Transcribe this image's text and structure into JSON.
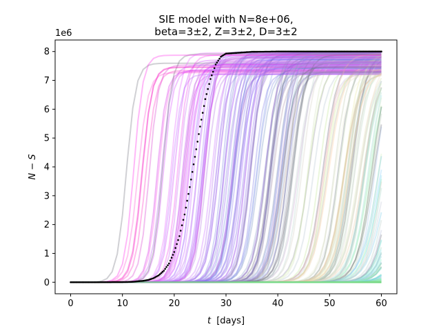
{
  "chart_data": {
    "type": "line",
    "title_lines": [
      "SIE model with N=8e+06,",
      "beta=3±2, Z=3±2, D=3±2"
    ],
    "xlabel_var": "t",
    "xlabel_unit": "[days]",
    "ylabel": "N − S",
    "y_offset_label": "1e6",
    "xlim": [
      -3,
      63
    ],
    "ylim": [
      -0.4,
      8.4
    ],
    "y_unit_multiplier": 1000000,
    "xticks": [
      0,
      10,
      20,
      30,
      40,
      50,
      60
    ],
    "yticks": [
      0,
      1,
      2,
      3,
      4,
      5,
      6,
      7,
      8
    ],
    "grid": false,
    "legend": "none",
    "ensemble": {
      "description_count": 320,
      "x_range": [
        0,
        60
      ],
      "t_half_range": [
        10,
        90
      ],
      "plateau_range": [
        7.2,
        8.0
      ],
      "color_ramp": [
        "#ff33cc",
        "#cc66ff",
        "#7777dd",
        "#eeddaa",
        "#88ddee",
        "#99ee88",
        "#33ee55"
      ],
      "line_opacity": 0.32
    },
    "series": [
      {
        "style": "black dotted mean trajectory",
        "color": "#000000",
        "x": [
          0,
          5,
          10,
          12,
          14,
          15,
          16,
          17,
          18,
          19,
          20,
          21,
          22,
          23,
          24,
          25,
          26,
          27,
          28,
          29,
          30,
          35,
          40,
          50,
          60
        ],
        "y": [
          0,
          0,
          0.005,
          0.015,
          0.05,
          0.08,
          0.14,
          0.24,
          0.4,
          0.65,
          1.05,
          1.6,
          2.35,
          3.3,
          4.35,
          5.4,
          6.35,
          7.05,
          7.55,
          7.82,
          7.93,
          7.99,
          8.0,
          8.0,
          8.0
        ]
      }
    ]
  }
}
